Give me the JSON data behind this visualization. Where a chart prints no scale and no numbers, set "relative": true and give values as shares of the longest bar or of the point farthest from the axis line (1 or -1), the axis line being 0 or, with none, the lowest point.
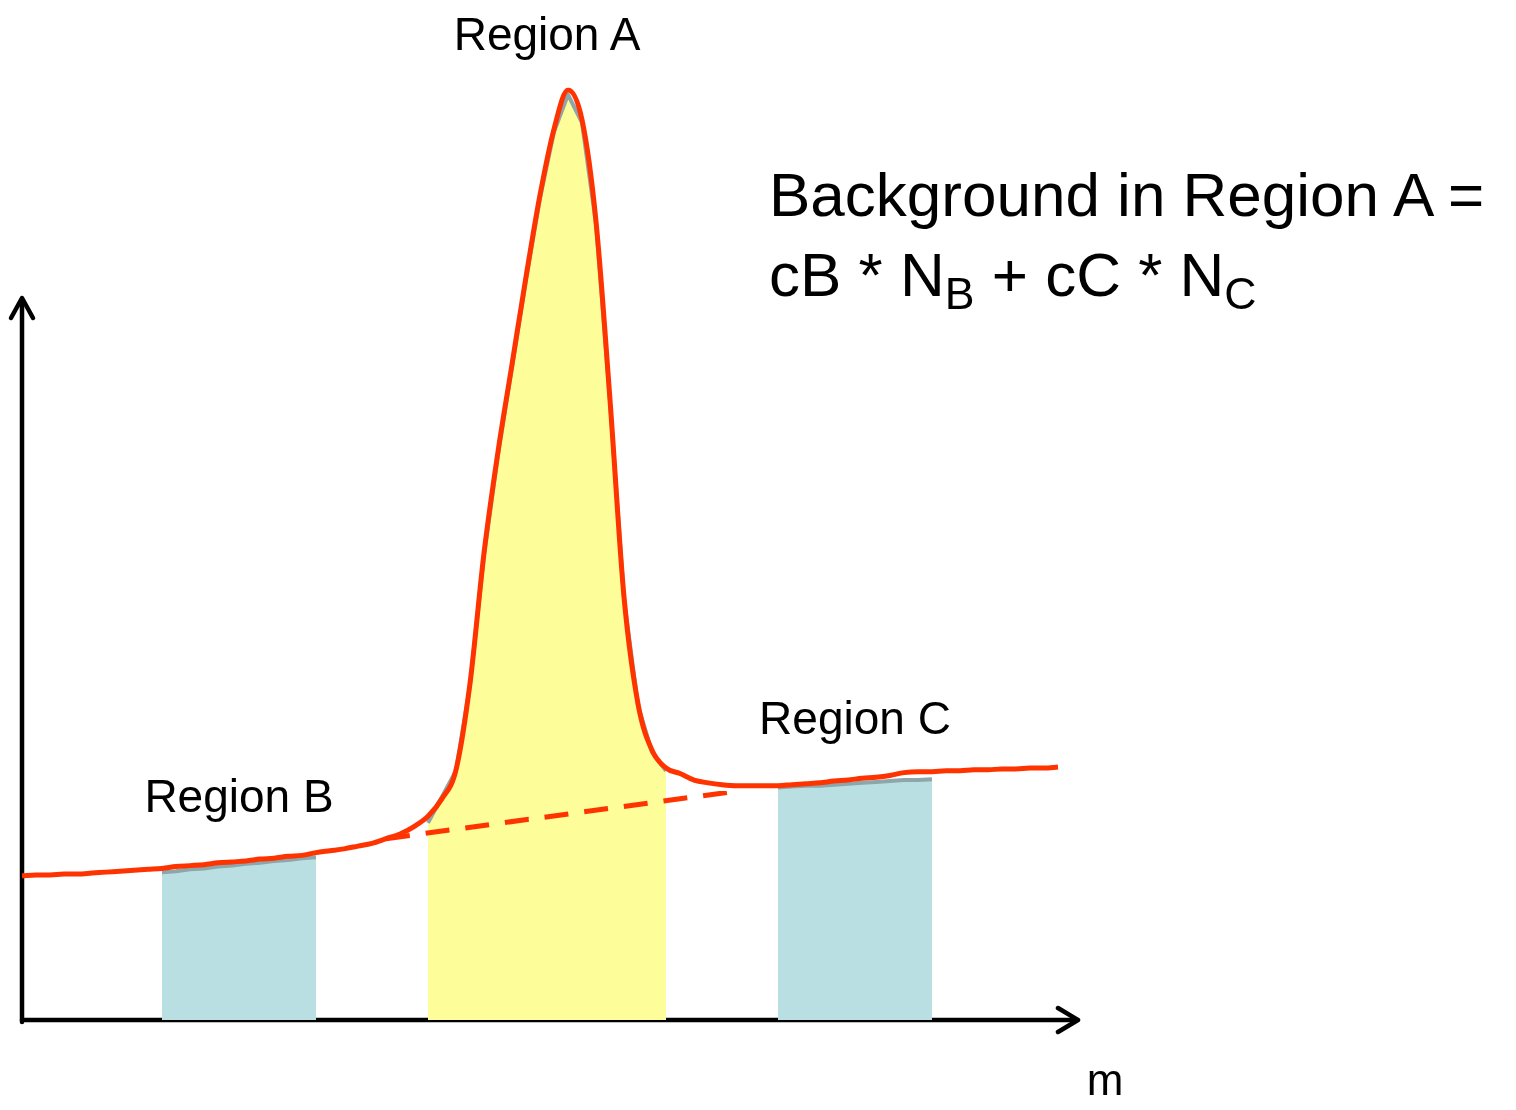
{
  "chart_data": {
    "type": "line",
    "relative": true,
    "xlabel": "m",
    "annotations": [
      "Background in Region A =\ncB * N$_{B}$ + cC * N$_{C}$"
    ],
    "categories": [
      null,
      null,
      null,
      null,
      null,
      null,
      null,
      null,
      null,
      null,
      null,
      null,
      null,
      null,
      null,
      null,
      null,
      null,
      null,
      null,
      null,
      null,
      null,
      null,
      null,
      null,
      null,
      null,
      null,
      null,
      null,
      null,
      null,
      null,
      null,
      null,
      null,
      null,
      null,
      null,
      null,
      null,
      null,
      null,
      null,
      null,
      null,
      null,
      null,
      null,
      null,
      null,
      null,
      null,
      null,
      null,
      null,
      null,
      null,
      null,
      null,
      null,
      null,
      null,
      null,
      null,
      null,
      null,
      null,
      null,
      null,
      null,
      null,
      null,
      null,
      null
    ],
    "series": [
      {
        "type": "line",
        "color": "#ff3300",
        "values": [
          0.155,
          0.156,
          0.156,
          0.157,
          0.157,
          0.158,
          0.159,
          0.16,
          0.161,
          0.162,
          0.163,
          0.165,
          0.166,
          0.167,
          0.169,
          0.17,
          0.171,
          0.173,
          0.174,
          0.176,
          0.177,
          0.18,
          0.182,
          0.184,
          0.187,
          0.19,
          0.195,
          0.2,
          0.208,
          0.219,
          0.238,
          0.269,
          0.362,
          0.502,
          0.611,
          0.705,
          0.799,
          0.887,
          0.958,
          1,
          0.968,
          0.859,
          0.667,
          0.455,
          0.34,
          0.29,
          0.271,
          0.265,
          0.258,
          0.255,
          0.253,
          0.252,
          0.252,
          0.252,
          0.252,
          0.253,
          0.254,
          0.255,
          0.257,
          0.258,
          0.26,
          0.261,
          0.263,
          0.266,
          0.267,
          0.267,
          0.268,
          0.268,
          0.269,
          0.269,
          0.27,
          0.27,
          0.271,
          0.271,
          0.272,
          null
        ]
      },
      {
        "type": "line",
        "color": "#ff3300",
        "line_style": "dashed",
        "values": [
          null,
          null,
          null,
          null,
          null,
          null,
          null,
          null,
          null,
          null,
          null,
          null,
          null,
          null,
          null,
          null,
          null,
          null,
          null,
          null,
          null,
          null,
          null,
          null,
          null,
          null,
          0.195,
          null,
          null,
          null,
          null,
          null,
          null,
          null,
          null,
          null,
          null,
          null,
          null,
          null,
          null,
          null,
          null,
          null,
          null,
          null,
          null,
          null,
          null,
          null,
          null,
          0.246,
          null,
          null,
          null,
          null,
          null,
          null,
          null,
          null,
          null,
          null,
          null,
          null,
          null,
          null,
          null,
          null,
          null,
          null,
          null,
          null,
          null,
          null,
          null,
          null
        ]
      },
      {
        "type": "area",
        "name": "Region A",
        "color": "#fdfd9a",
        "values": [
          null,
          null,
          null,
          null,
          null,
          null,
          null,
          null,
          null,
          null,
          null,
          null,
          null,
          null,
          null,
          null,
          null,
          null,
          null,
          null,
          null,
          null,
          null,
          null,
          null,
          null,
          null,
          null,
          null,
          0.212,
          0.24,
          0.268,
          0.36,
          0.5,
          0.608,
          0.702,
          0.796,
          0.884,
          0.955,
          0.995,
          0.965,
          0.856,
          0.665,
          0.453,
          0.338,
          0.288,
          0.268,
          null,
          null,
          null,
          null,
          null,
          null,
          null,
          null,
          null,
          null,
          null,
          null,
          null,
          null,
          null,
          null,
          null,
          null,
          null,
          null,
          null,
          null,
          null,
          null,
          null,
          null,
          null,
          null,
          null
        ]
      },
      {
        "type": "area",
        "name": "Region B",
        "color": "#b9dfe2",
        "values": [
          null,
          null,
          null,
          null,
          null,
          null,
          null,
          null,
          null,
          null,
          0.159,
          0.16,
          0.162,
          0.163,
          0.165,
          0.166,
          0.168,
          0.169,
          0.171,
          0.172,
          0.174,
          0.175,
          null,
          null,
          null,
          null,
          null,
          null,
          null,
          null,
          null,
          null,
          null,
          null,
          null,
          null,
          null,
          null,
          null,
          null,
          null,
          null,
          null,
          null,
          null,
          null,
          null,
          null,
          null,
          null,
          null,
          null,
          null,
          null,
          null,
          null,
          null,
          null,
          null,
          null,
          null,
          null,
          null,
          null,
          null,
          null,
          null,
          null,
          null,
          null,
          null,
          null,
          null,
          null,
          null,
          null
        ]
      },
      {
        "type": "area",
        "name": "Region C",
        "color": "#b9dfe2",
        "values": [
          null,
          null,
          null,
          null,
          null,
          null,
          null,
          null,
          null,
          null,
          null,
          null,
          null,
          null,
          null,
          null,
          null,
          null,
          null,
          null,
          null,
          null,
          null,
          null,
          null,
          null,
          null,
          null,
          null,
          null,
          null,
          null,
          null,
          null,
          null,
          null,
          null,
          null,
          null,
          null,
          null,
          null,
          null,
          null,
          null,
          null,
          null,
          null,
          null,
          null,
          null,
          null,
          null,
          null,
          0.25,
          0.251,
          0.252,
          0.252,
          0.253,
          0.254,
          0.255,
          0.256,
          0.257,
          0.258,
          0.258,
          0.259,
          null,
          null,
          null,
          null,
          null,
          null,
          null,
          null,
          null,
          null
        ]
      }
    ]
  }
}
